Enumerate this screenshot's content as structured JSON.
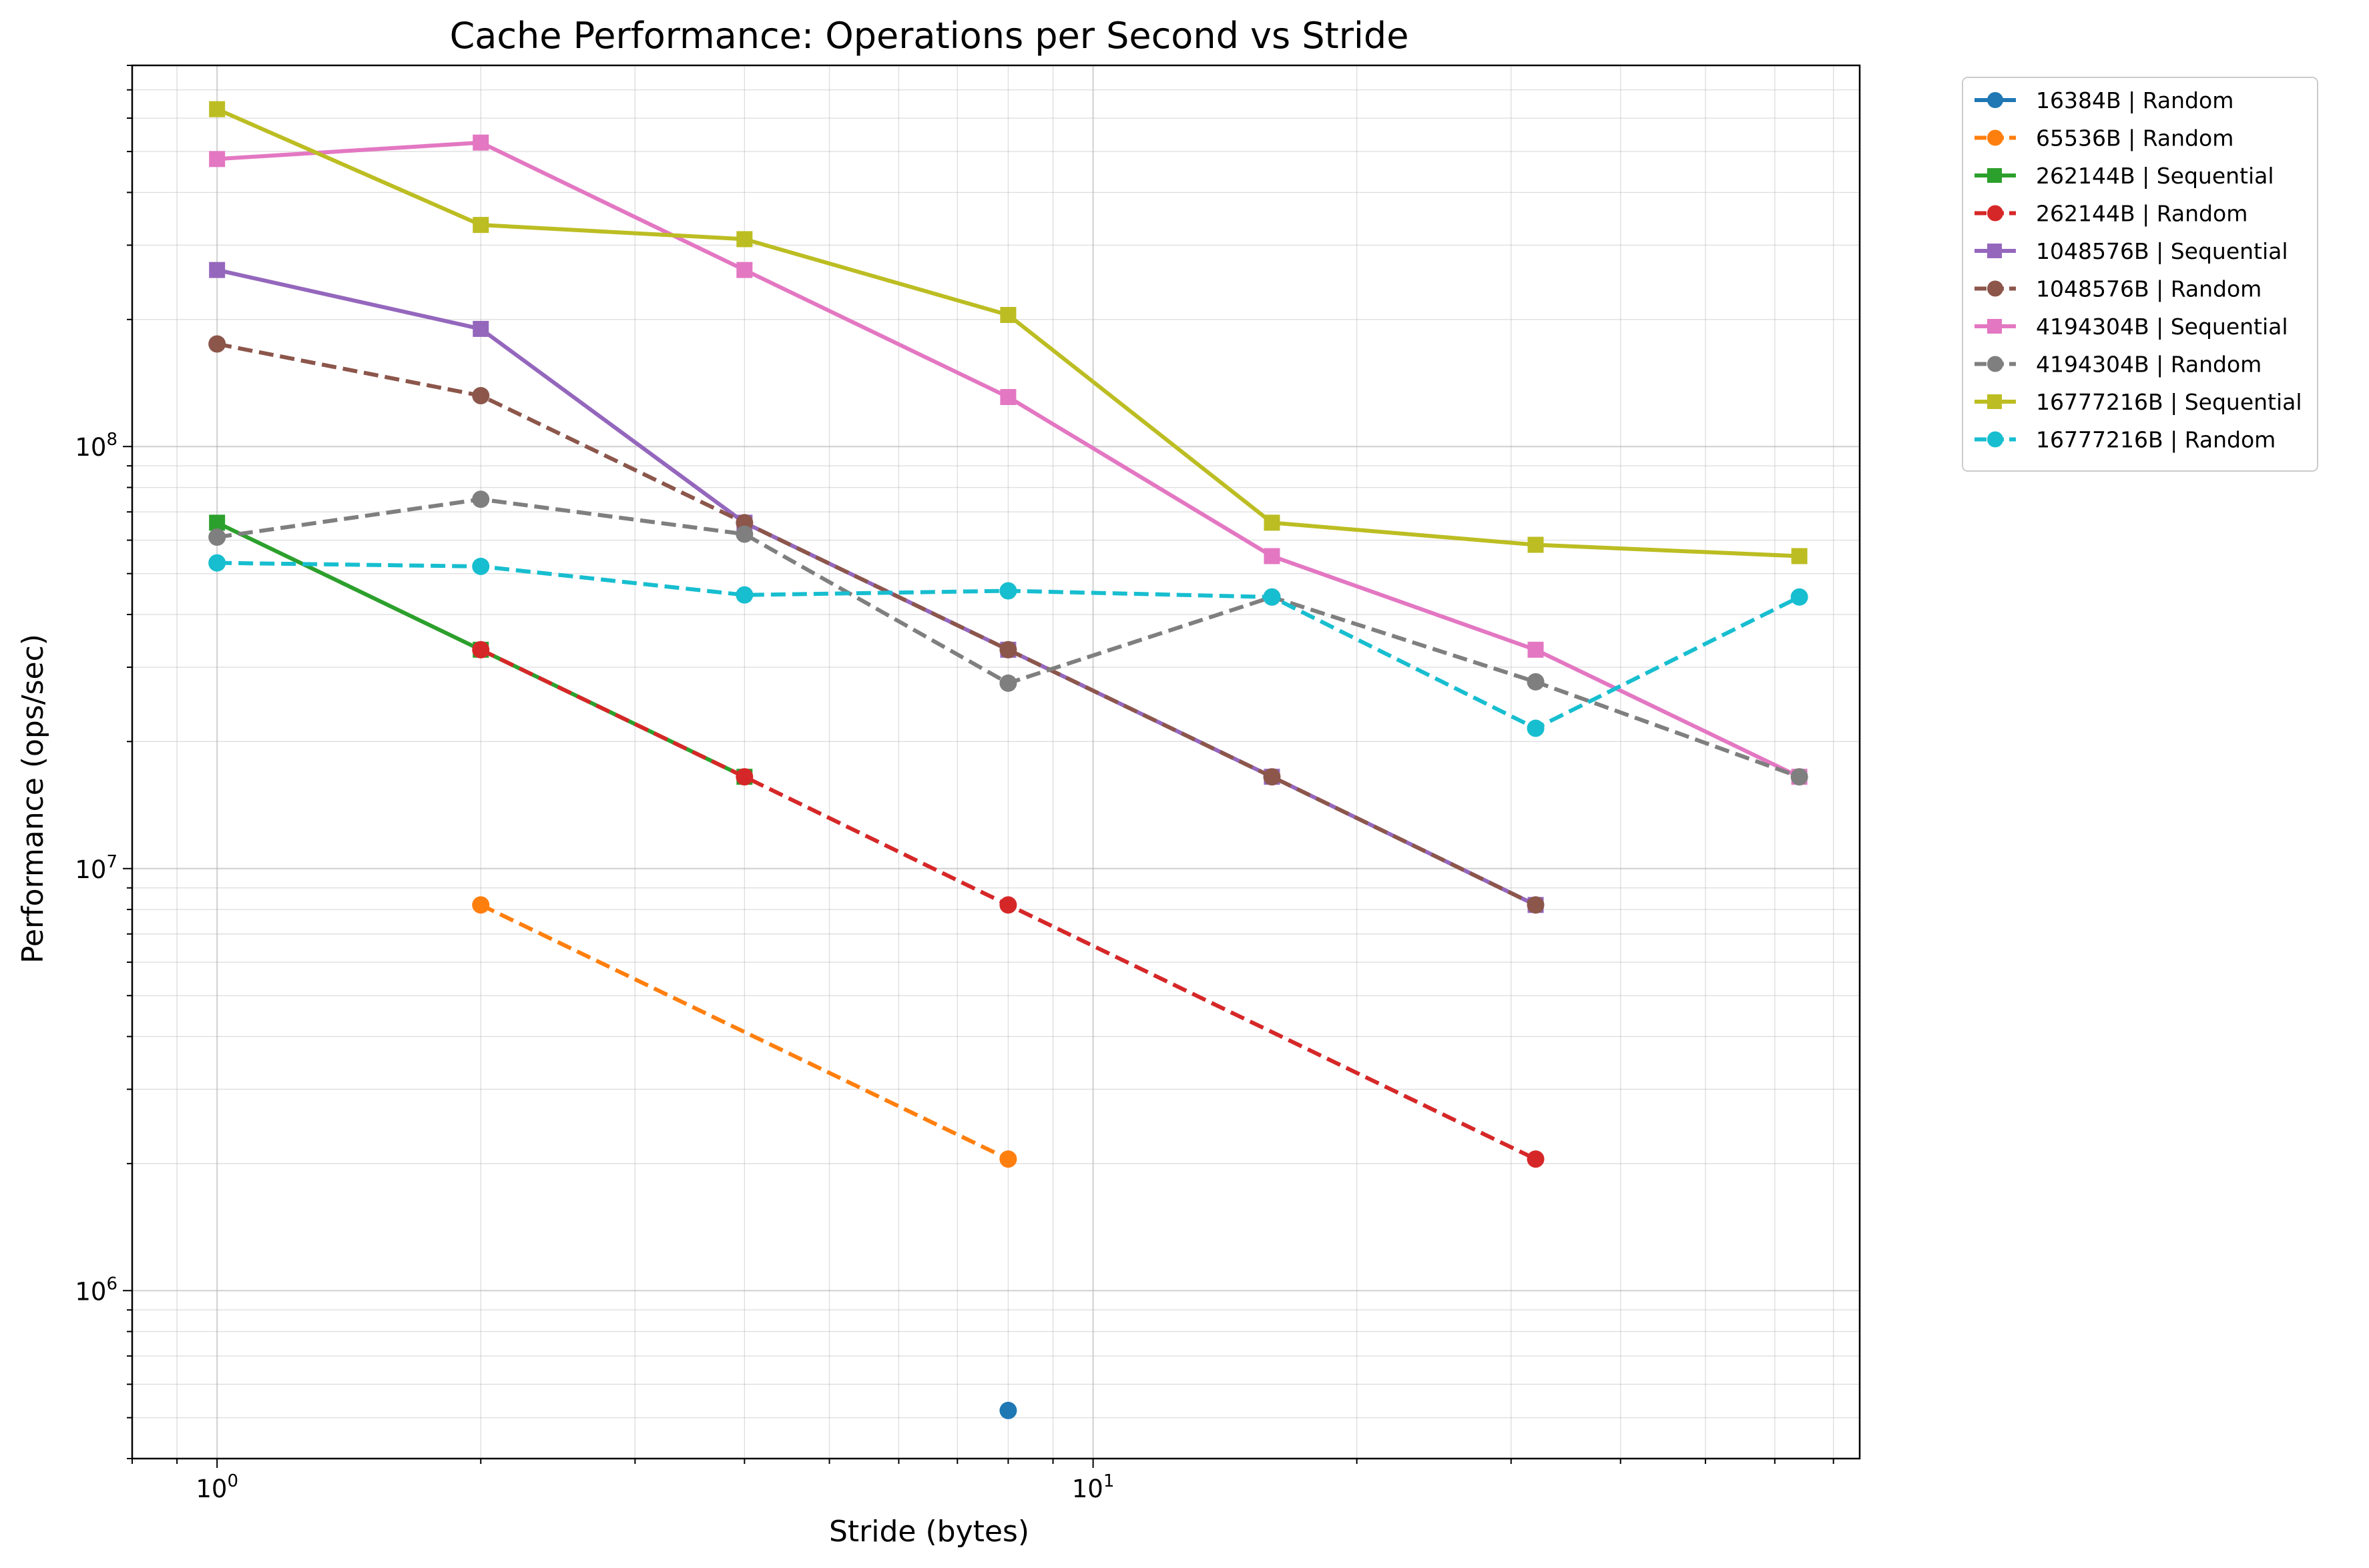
{
  "chart_data": {
    "type": "line",
    "title": "Cache Performance: Operations per Second vs Stride",
    "xlabel": "Stride (bytes)",
    "ylabel": "Performance (ops/sec)",
    "x_scale": "log",
    "y_scale": "log",
    "xlim": [
      0.8,
      75
    ],
    "ylim": [
      400000,
      800000000
    ],
    "x_tick_labels": [
      {
        "value": 1,
        "base": "10",
        "exp": "0"
      },
      {
        "value": 10,
        "base": "10",
        "exp": "1"
      }
    ],
    "y_tick_labels": [
      {
        "value": 1000000,
        "base": "10",
        "exp": "6"
      },
      {
        "value": 10000000,
        "base": "10",
        "exp": "7"
      },
      {
        "value": 100000000,
        "base": "10",
        "exp": "8"
      }
    ],
    "grid": true,
    "legend_position": "outside-top-right",
    "series": [
      {
        "name": "16384B | Random",
        "color": "#1f77b4",
        "dash": false,
        "marker": "circle",
        "points": [
          [
            8,
            520000
          ]
        ]
      },
      {
        "name": "65536B | Random",
        "color": "#ff7f0e",
        "dash": true,
        "marker": "circle",
        "points": [
          [
            2,
            8200000
          ],
          [
            8,
            2050000
          ]
        ]
      },
      {
        "name": "262144B | Sequential",
        "color": "#2ca02c",
        "dash": false,
        "marker": "square",
        "points": [
          [
            1,
            66000000
          ],
          [
            2,
            33000000
          ],
          [
            4,
            16500000
          ]
        ]
      },
      {
        "name": "262144B | Random",
        "color": "#d62728",
        "dash": true,
        "marker": "circle",
        "points": [
          [
            2,
            33000000
          ],
          [
            4,
            16500000
          ],
          [
            8,
            8200000
          ],
          [
            32,
            2050000
          ]
        ]
      },
      {
        "name": "1048576B | Sequential",
        "color": "#9467bd",
        "dash": false,
        "marker": "square",
        "points": [
          [
            1,
            262000000
          ],
          [
            2,
            190000000
          ],
          [
            4,
            66000000
          ],
          [
            8,
            33000000
          ],
          [
            16,
            16500000
          ],
          [
            32,
            8200000
          ]
        ]
      },
      {
        "name": "1048576B | Random",
        "color": "#8c564b",
        "dash": true,
        "marker": "circle",
        "points": [
          [
            1,
            175000000
          ],
          [
            2,
            132000000
          ],
          [
            4,
            66000000
          ],
          [
            8,
            33000000
          ],
          [
            16,
            16500000
          ],
          [
            32,
            8200000
          ]
        ]
      },
      {
        "name": "4194304B | Sequential",
        "color": "#e377c2",
        "dash": false,
        "marker": "square",
        "points": [
          [
            1,
            480000000
          ],
          [
            2,
            525000000
          ],
          [
            4,
            262000000
          ],
          [
            8,
            131000000
          ],
          [
            16,
            55000000
          ],
          [
            32,
            33000000
          ],
          [
            64,
            16500000
          ]
        ]
      },
      {
        "name": "4194304B | Random",
        "color": "#7f7f7f",
        "dash": true,
        "marker": "circle",
        "points": [
          [
            1,
            61000000
          ],
          [
            2,
            75000000
          ],
          [
            4,
            62000000
          ],
          [
            8,
            27500000
          ],
          [
            16,
            44000000
          ],
          [
            32,
            27700000
          ],
          [
            64,
            16500000
          ]
        ]
      },
      {
        "name": "16777216B | Sequential",
        "color": "#bcbd22",
        "dash": false,
        "marker": "square",
        "points": [
          [
            1,
            630000000
          ],
          [
            2,
            335000000
          ],
          [
            4,
            310000000
          ],
          [
            8,
            205000000
          ],
          [
            16,
            66000000
          ],
          [
            32,
            58500000
          ],
          [
            64,
            55000000
          ]
        ]
      },
      {
        "name": "16777216B | Random",
        "color": "#17becf",
        "dash": true,
        "marker": "circle",
        "points": [
          [
            1,
            53000000
          ],
          [
            2,
            52000000
          ],
          [
            4,
            44500000
          ],
          [
            8,
            45500000
          ],
          [
            16,
            44000000
          ],
          [
            32,
            21500000
          ],
          [
            64,
            44000000
          ]
        ]
      }
    ]
  }
}
